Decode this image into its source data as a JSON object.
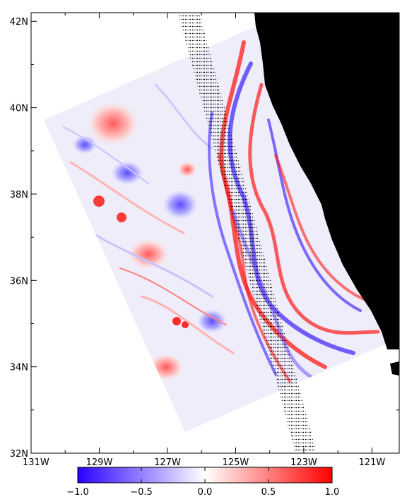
{
  "map": {
    "lat_labels": [
      "42N",
      "40N",
      "38N",
      "36N",
      "34N",
      "32N"
    ],
    "lat_values": [
      42,
      40,
      38,
      36,
      34,
      32
    ],
    "lon_labels": [
      "131W",
      "129W",
      "127W",
      "125W",
      "123W",
      "121W"
    ],
    "lon_values": [
      -131,
      -129,
      -127,
      -125,
      -123,
      -121
    ],
    "lat_range": [
      32,
      42.2
    ],
    "lon_range": [
      -131,
      -120.2
    ],
    "land_color": "#000000",
    "ocean_background": "#ffffff"
  },
  "colorbar": {
    "tick_labels": [
      "−1.0",
      "−0.5",
      "0.0",
      "0.5",
      "1.0"
    ],
    "tick_values": [
      -1.0,
      -0.5,
      0.0,
      0.5,
      1.0
    ],
    "range": [
      -1.0,
      1.0
    ],
    "colors": [
      "#2a00ff",
      "#ffffff",
      "#ff0000"
    ]
  }
}
